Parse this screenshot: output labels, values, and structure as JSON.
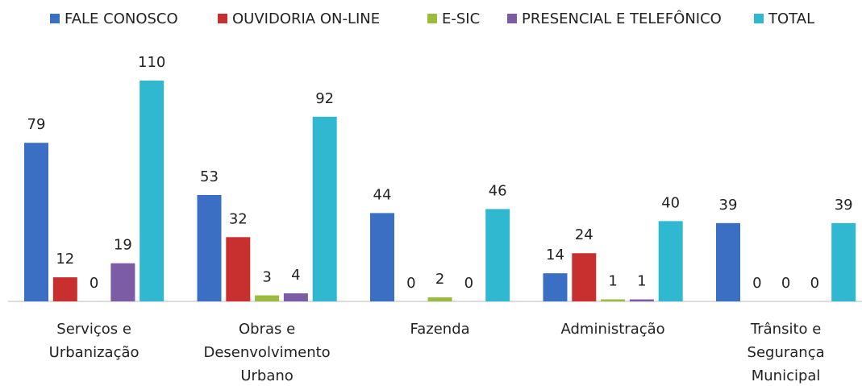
{
  "chart_data": {
    "type": "bar",
    "categories": [
      "Serviços e Urbanização",
      "Obras e Desenvolvimento Urbano",
      "Fazenda",
      "Administração",
      "Trânsito e Segurança Municipal"
    ],
    "series": [
      {
        "name": "FALE CONOSCO",
        "color": "#3a6fc4",
        "values": [
          79,
          53,
          44,
          14,
          39
        ]
      },
      {
        "name": "OUVIDORIA ON-LINE",
        "color": "#c8302f",
        "values": [
          12,
          32,
          0,
          24,
          0
        ]
      },
      {
        "name": "E-SIC",
        "color": "#9bbb3c",
        "values": [
          0,
          3,
          2,
          1,
          0
        ]
      },
      {
        "name": "PRESENCIAL E TELEFÔNICO",
        "color": "#7d5ca6",
        "values": [
          19,
          4,
          0,
          1,
          0
        ]
      },
      {
        "name": "TOTAL",
        "color": "#2fb8d0",
        "values": [
          110,
          92,
          46,
          40,
          39
        ]
      }
    ],
    "legend": "top"
  }
}
